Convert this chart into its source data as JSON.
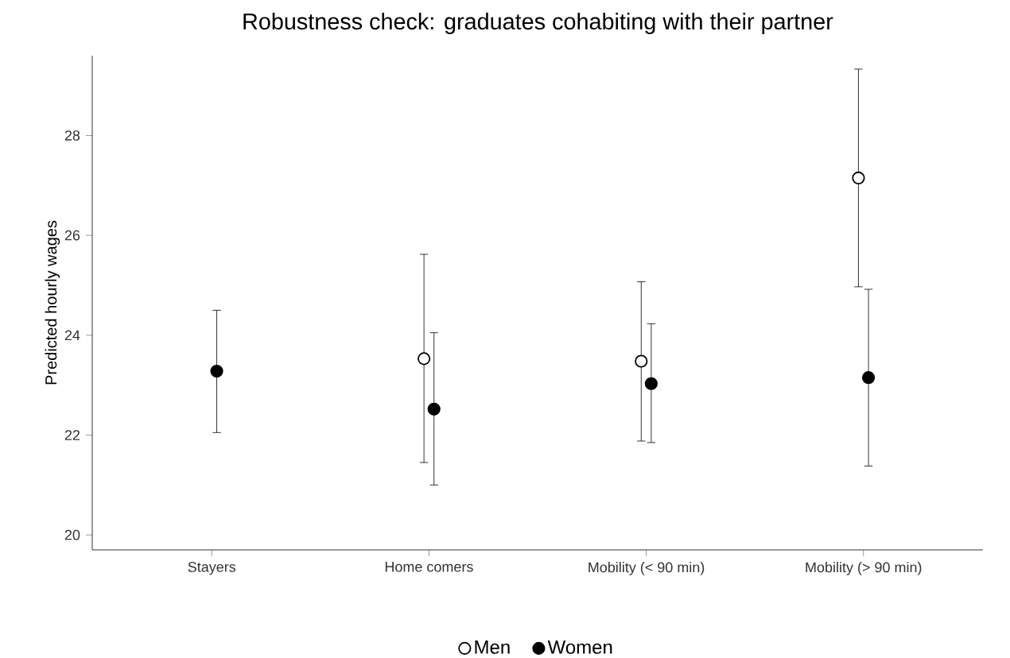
{
  "chart_data": {
    "type": "scatter",
    "title": "Robustness check: graduates cohabiting with their partner",
    "ylabel": "Predicted hourly wages",
    "categories": [
      "Stayers",
      "Home comers",
      "Mobility (< 90 min)",
      "Mobility (> 90 min)"
    ],
    "series": [
      {
        "name": "Men",
        "color": "#ffffff",
        "values": [
          null,
          23.53,
          23.48,
          27.15
        ],
        "errors": [
          null,
          [
            21.45,
            25.62
          ],
          [
            21.88,
            25.07
          ],
          [
            24.97,
            29.33
          ]
        ]
      },
      {
        "name": "Women",
        "color": "#000000",
        "values": [
          23.28,
          22.52,
          23.03,
          23.15
        ],
        "errors": [
          [
            22.05,
            24.5
          ],
          [
            21.0,
            24.05
          ],
          [
            21.85,
            24.23
          ],
          [
            21.38,
            24.92
          ]
        ]
      }
    ],
    "ylim": [
      19.7,
      29.6
    ],
    "yticks": [
      20,
      22,
      24,
      26,
      28
    ],
    "marker": "circle",
    "legend": "bottom",
    "grid": false
  }
}
